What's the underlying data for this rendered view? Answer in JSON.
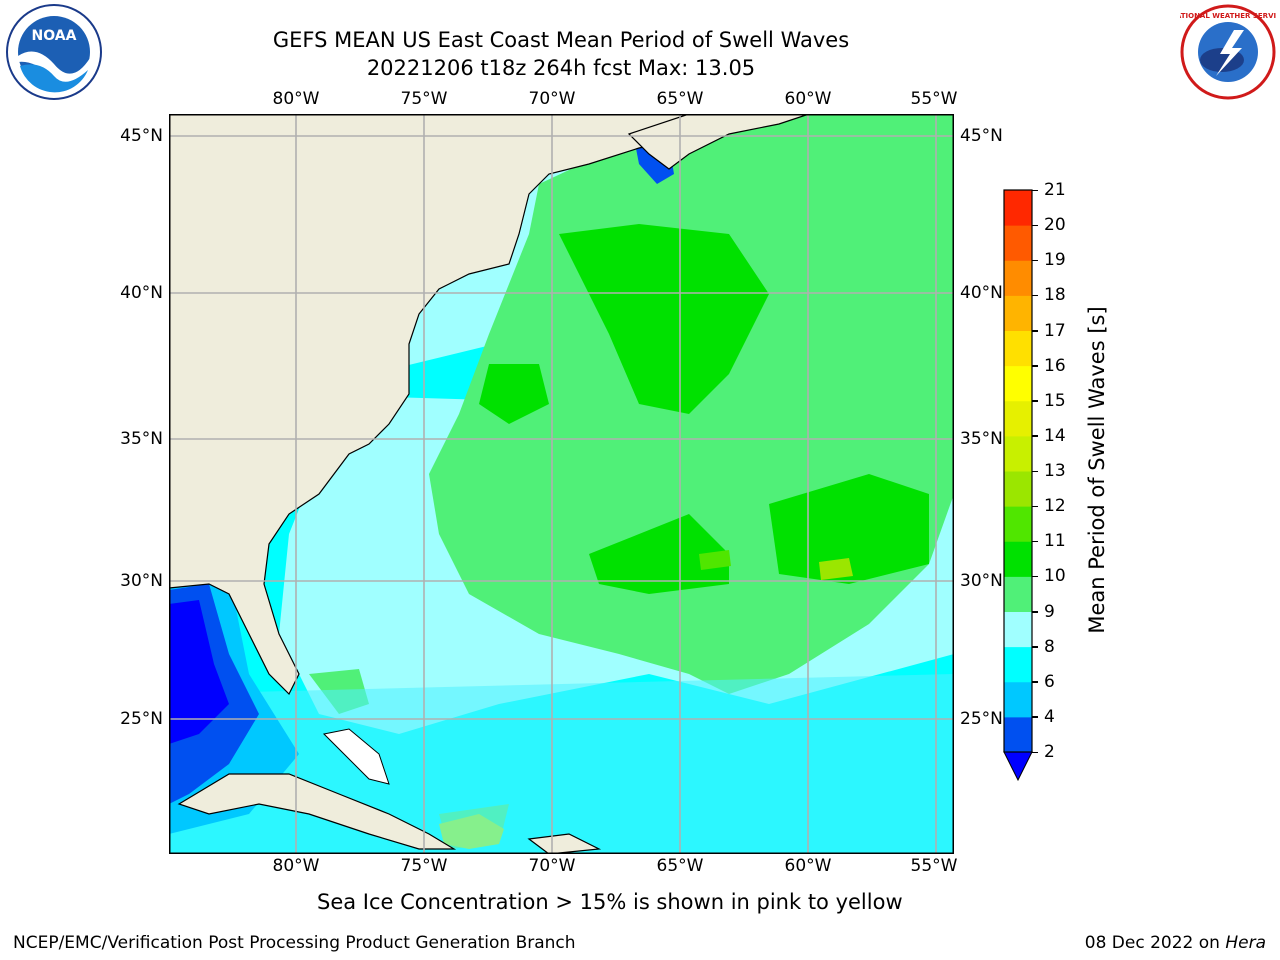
{
  "header": {
    "title_line1": "GEFS MEAN US East Coast Mean Period of Swell Waves",
    "title_line2": "20221206 t18z 264h fcst   Max: 13.05"
  },
  "logos": {
    "left": {
      "name": "noaa-logo",
      "text": "NOAA"
    },
    "right": {
      "name": "nws-logo",
      "text": "NATIONAL WEATHER SERVICE"
    }
  },
  "map": {
    "lon_ticks": [
      "80°W",
      "75°W",
      "70°W",
      "65°W",
      "60°W",
      "55°W"
    ],
    "lat_ticks": [
      "45°N",
      "40°N",
      "35°N",
      "30°N",
      "25°N"
    ],
    "colors": {
      "land": "#efeddc",
      "grid": "#b0b0b0",
      "coast": "#000000"
    }
  },
  "colorbar": {
    "label": "Mean Period of Swell Waves [s]",
    "levels": [
      "2",
      "4",
      "6",
      "8",
      "9",
      "10",
      "11",
      "12",
      "13",
      "14",
      "15",
      "16",
      "17",
      "18",
      "19",
      "20",
      "21"
    ],
    "colors": [
      "#0050f0",
      "#00c8ff",
      "#00ffff",
      "#a0ffff",
      "#50f078",
      "#00e100",
      "#50e600",
      "#9be600",
      "#c8f000",
      "#e6f000",
      "#ffff00",
      "#ffe000",
      "#ffb400",
      "#ff8c00",
      "#ff5a00",
      "#ff2800",
      "#ff0000"
    ],
    "under_color": "#0000ff"
  },
  "note": "Sea Ice Concentration > 15% is shown in pink to yellow",
  "footer": {
    "left": "NCEP/EMC/Verification Post Processing Product Generation Branch",
    "date": "08 Dec 2022 on ",
    "host": "Hera"
  }
}
